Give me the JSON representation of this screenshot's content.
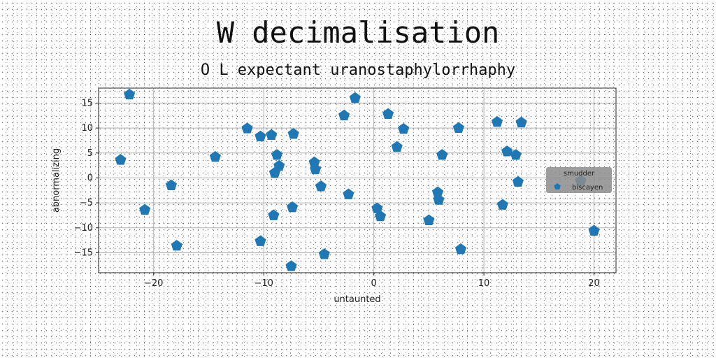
{
  "chart_data": {
    "type": "scatter",
    "title": "W decimalisation",
    "subtitle": "O L expectant uranostaphylorrhaphy",
    "xlabel": "untaunted",
    "ylabel": "abnormalizing",
    "xlim": [
      -25,
      22
    ],
    "ylim": [
      -19,
      18
    ],
    "xticks": [
      -20,
      -10,
      0,
      10,
      20
    ],
    "yticks": [
      -15,
      -10,
      -5,
      0,
      5,
      10,
      15
    ],
    "grid": true,
    "marker": "pentagon",
    "legend": {
      "title": "smudder",
      "placement": "right"
    },
    "series": [
      {
        "name": "biscayen",
        "color": "#1f77b4",
        "points": [
          [
            -22.2,
            16.7
          ],
          [
            -23.0,
            3.6
          ],
          [
            -20.8,
            -6.4
          ],
          [
            -18.4,
            -1.5
          ],
          [
            -17.9,
            -13.6
          ],
          [
            -14.4,
            4.2
          ],
          [
            -11.5,
            9.9
          ],
          [
            -10.3,
            8.3
          ],
          [
            -10.3,
            -12.7
          ],
          [
            -9.3,
            8.6
          ],
          [
            -8.8,
            4.6
          ],
          [
            -8.6,
            2.4
          ],
          [
            -9.0,
            1.0
          ],
          [
            -9.1,
            -7.5
          ],
          [
            -7.3,
            8.8
          ],
          [
            -7.4,
            -5.9
          ],
          [
            -7.5,
            -17.7
          ],
          [
            -5.4,
            3.1
          ],
          [
            -5.3,
            1.7
          ],
          [
            -4.8,
            -1.7
          ],
          [
            -4.5,
            -15.3
          ],
          [
            -2.7,
            12.5
          ],
          [
            -1.7,
            16.0
          ],
          [
            -2.3,
            -3.3
          ],
          [
            0.3,
            -6.1
          ],
          [
            0.6,
            -7.7
          ],
          [
            1.3,
            12.8
          ],
          [
            2.7,
            9.8
          ],
          [
            2.1,
            6.2
          ],
          [
            5.0,
            -8.5
          ],
          [
            5.8,
            -2.9
          ],
          [
            5.9,
            -4.4
          ],
          [
            6.2,
            4.6
          ],
          [
            7.7,
            10.0
          ],
          [
            7.9,
            -14.3
          ],
          [
            11.2,
            11.2
          ],
          [
            11.7,
            -5.4
          ],
          [
            12.1,
            5.3
          ],
          [
            12.9,
            4.6
          ],
          [
            13.1,
            -0.8
          ],
          [
            13.4,
            11.1
          ],
          [
            18.8,
            -0.6
          ],
          [
            20.0,
            -10.6
          ]
        ]
      }
    ]
  }
}
